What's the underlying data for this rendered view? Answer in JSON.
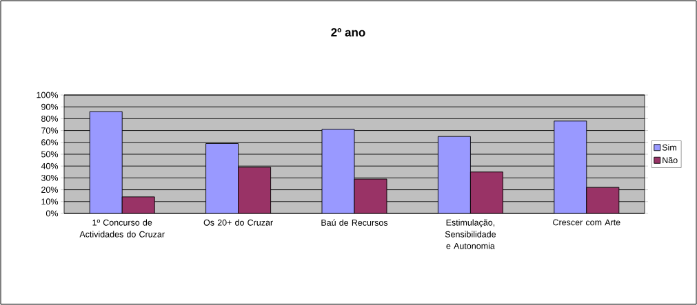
{
  "chart_data": {
    "type": "bar",
    "title": "2º ano",
    "categories": [
      "1º Concurso de Actividades do Cruzar",
      "Os 20+ do Cruzar",
      "Baú de Recursos",
      "Estimulação, Sensibilidade e Autonomia",
      "Crescer com Arte"
    ],
    "series": [
      {
        "name": "Sim",
        "color": "#9999ff",
        "values": [
          86,
          59,
          71,
          65,
          78
        ]
      },
      {
        "name": "Não",
        "color": "#993366",
        "values": [
          14,
          39,
          29,
          35,
          22
        ]
      }
    ],
    "ylim": [
      0,
      100
    ],
    "yticks": [
      {
        "value": 0,
        "label": "0%"
      },
      {
        "value": 10,
        "label": "10%"
      },
      {
        "value": 20,
        "label": "20%"
      },
      {
        "value": 30,
        "label": "30%"
      },
      {
        "value": 40,
        "label": "40%"
      },
      {
        "value": 50,
        "label": "50%"
      },
      {
        "value": 60,
        "label": "60%"
      },
      {
        "value": 70,
        "label": "70%"
      },
      {
        "value": 80,
        "label": "80%"
      },
      {
        "value": 90,
        "label": "90%"
      },
      {
        "value": 100,
        "label": "100%"
      }
    ],
    "grid": "y",
    "legend": "right"
  }
}
